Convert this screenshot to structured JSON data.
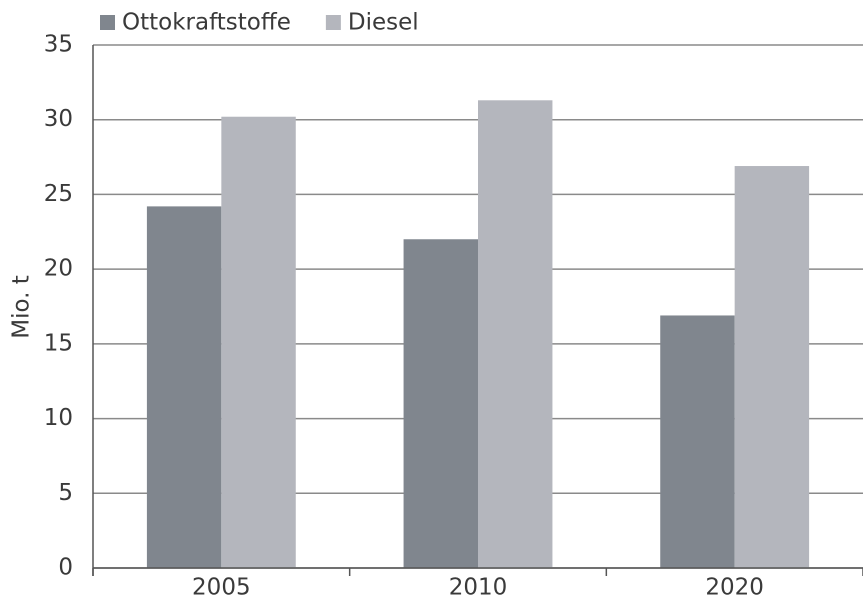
{
  "chart_data": {
    "type": "bar",
    "y_label": "Mio. t",
    "categories": [
      "2005",
      "2010",
      "2020"
    ],
    "series": [
      {
        "name": "Ottokraftstoffe",
        "color": "#80868e",
        "values": [
          24.2,
          22,
          16.9
        ]
      },
      {
        "name": "Diesel",
        "color": "#b4b6bd",
        "values": [
          30.2,
          31.3,
          26.9
        ]
      }
    ],
    "ylim": [
      0,
      35
    ],
    "yticks": [
      0,
      5,
      10,
      15,
      20,
      25,
      30,
      35
    ],
    "grid": true,
    "legend": "top-left"
  }
}
